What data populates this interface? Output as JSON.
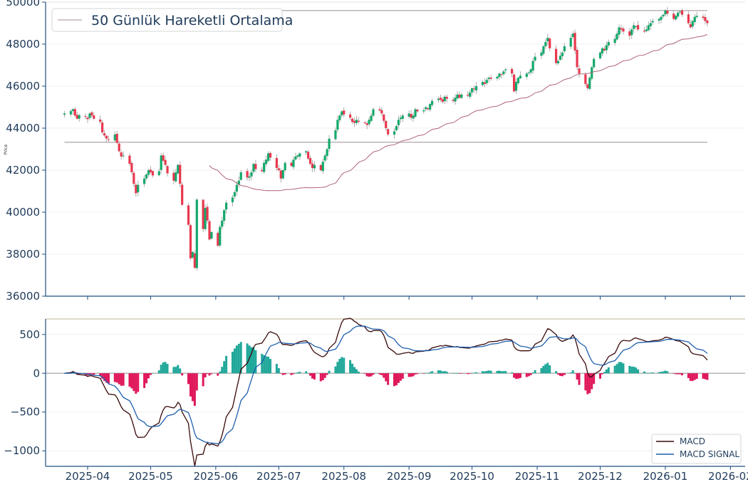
{
  "chart_data": [
    {
      "type": "candlestick",
      "ylabel": "Price",
      "ylim": [
        36000,
        50000
      ],
      "yticks": [
        "36000",
        "38000",
        "40000",
        "42000",
        "44000",
        "46000",
        "48000",
        "50000"
      ],
      "xlim": [
        "2025-03-12",
        "2026-02-08"
      ],
      "xticks": [
        "2025-04",
        "2025-05",
        "2025-06",
        "2025-07",
        "2025-08",
        "2025-09",
        "2025-10",
        "2025-11",
        "2025-12",
        "2026-01",
        "2026-02"
      ],
      "legend": {
        "position": "top-left",
        "entries": [
          {
            "label": "50 Günlük Hareketli Ortalama",
            "color": "#c0b4bc"
          }
        ]
      },
      "horizontal_lines": [
        {
          "value": 49600,
          "color": "#bbb3b9"
        },
        {
          "value": 43330,
          "color": "#bbb3b9"
        }
      ],
      "up_color": "#14a86a",
      "down_color": "#e8384e",
      "ma_color": "#b06478",
      "ma_period": 50,
      "start_date": "2025-03-21",
      "closes": [
        44700,
        44810,
        44900,
        44600,
        44450,
        44620,
        44540,
        44430,
        44700,
        44600,
        44450,
        44300,
        43800,
        43650,
        43500,
        43450,
        43700,
        43300,
        42900,
        42650,
        42700,
        42300,
        41900,
        41350,
        40900,
        41300,
        41600,
        41800,
        42000,
        41900,
        41750,
        41950,
        42700,
        42450,
        42250,
        41850,
        41500,
        41900,
        42250,
        41350,
        40350,
        39400,
        37800,
        38100,
        37350,
        40600,
        39200,
        40200,
        39600,
        38700,
        39050,
        38400,
        39300,
        39600,
        40100,
        40450,
        40700,
        40950,
        41300,
        41500,
        41900,
        41650,
        41700,
        41900,
        42300,
        42050,
        41950,
        42350,
        42500,
        42800,
        42600,
        42100,
        42000,
        41600,
        42000,
        42350,
        42200,
        42500,
        42650,
        42700,
        42800,
        42900,
        42550,
        42300,
        42100,
        42250,
        42000,
        42400,
        42700,
        43000,
        43500,
        43900,
        44400,
        44600,
        44800,
        44650,
        44500,
        44300,
        44250,
        44400,
        44300,
        44250,
        44150,
        44400,
        44600,
        44900,
        44850,
        44700,
        44350,
        44000,
        43700,
        43850,
        44100,
        44400,
        44500,
        44600,
        44700,
        44500,
        44600,
        44900,
        44800,
        44850,
        45000,
        44900,
        45150,
        45300,
        45400,
        45350,
        45250,
        45500,
        45400,
        45300,
        45450,
        45600,
        45450,
        45600,
        45550,
        45700,
        45900,
        45850,
        46000,
        46200,
        46100,
        46300,
        46400,
        46350,
        46450,
        46600,
        46550,
        46700,
        46800,
        46600,
        45750,
        46200,
        46400,
        46500,
        46600,
        46650,
        46800,
        47200,
        47400,
        47600,
        47900,
        48100,
        48300,
        47800,
        47100,
        47200,
        47450,
        47600,
        47900,
        48300,
        48500,
        47700,
        46900,
        46600,
        46100,
        45900,
        46400,
        46900,
        47300,
        47600,
        47800,
        47700,
        47950,
        48100,
        48250,
        48500,
        48800,
        48700,
        48600,
        48400,
        48700,
        48900,
        48850,
        48700,
        48600,
        48700,
        48900,
        49000,
        49100,
        49200,
        49300,
        49400,
        49600,
        49450,
        49200,
        49350,
        49500,
        49550,
        49400,
        49000,
        48800,
        49100,
        49300,
        49350,
        49250,
        49100,
        49000
      ],
      "series": [
        {
          "name": "50 Günlük Hareketli Ortalama"
        }
      ]
    },
    {
      "type": "line+bar",
      "ylim": [
        -1200,
        700
      ],
      "yticks": [
        "500",
        "0",
        "−500",
        "−1000"
      ],
      "xticks": [
        "2025-04",
        "2025-05",
        "2025-06",
        "2025-07",
        "2025-08",
        "2025-09",
        "2025-10",
        "2025-11",
        "2025-12",
        "2026-01",
        "2026-02"
      ],
      "legend": {
        "position": "bottom-right",
        "entries": [
          {
            "label": "MACD",
            "color": "#3a0a0a"
          },
          {
            "label": "MACD SIGNAL",
            "color": "#1f5fae"
          }
        ]
      },
      "hist_pos_color": "#21a89a",
      "hist_neg_color": "#e0185a",
      "series": [
        {
          "name": "MACD"
        },
        {
          "name": "MACD SIGNAL"
        }
      ]
    }
  ]
}
